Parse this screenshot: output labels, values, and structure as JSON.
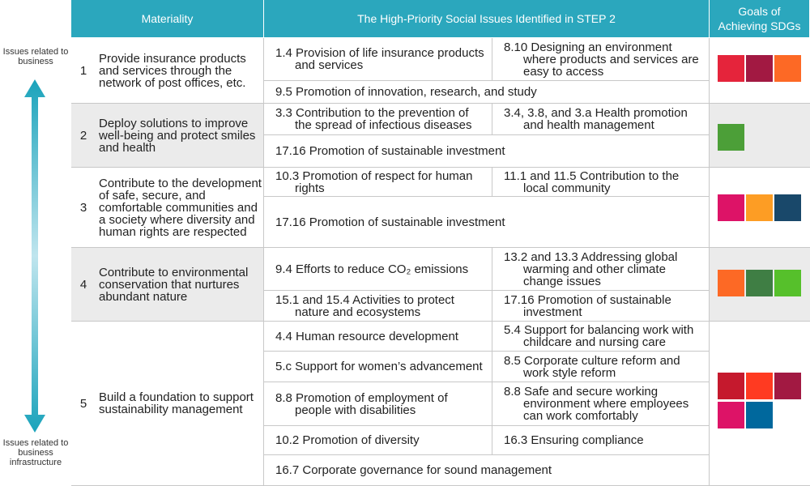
{
  "header": {
    "materiality": "Materiality",
    "issues": "The High-Priority Social Issues Identified in STEP 2",
    "goals": "Goals of Achieving SDGs"
  },
  "side": {
    "top": "Issues related to business",
    "bottom": "Issues related to business infrastructure"
  },
  "rows": [
    {
      "number": "1",
      "materiality": "Provide insurance products and services through the network of post offices, etc.",
      "issues": [
        [
          "1.4 Provision of life insurance products and services",
          "8.10 Designing an environment where products and services are easy to access"
        ],
        [
          "9.5 Promotion of innovation, research, and study"
        ]
      ]
    },
    {
      "number": "2",
      "materiality": "Deploy solutions to improve well-being and protect smiles and health",
      "issues": [
        [
          "3.3 Contribution to the prevention of the spread of infectious diseases",
          "3.4, 3.8, and 3.a Health promotion and health management"
        ],
        [
          "17.16 Promotion of sustainable investment"
        ]
      ]
    },
    {
      "number": "3",
      "materiality": "Contribute to the development of safe, secure, and comfortable communities and a society where diversity and human rights are respected",
      "issues": [
        [
          "10.3 Promotion of respect for human rights",
          "11.1 and 11.5 Contribution to the local community"
        ],
        [
          "17.16 Promotion of sustainable investment"
        ]
      ]
    },
    {
      "number": "4",
      "materiality": "Contribute to environmental conservation that nurtures abundant nature",
      "issues": [
        [
          "9.4 Efforts to reduce CO₂ emissions",
          "13.2 and 13.3 Addressing global warming and other climate change issues"
        ],
        [
          "15.1 and 15.4 Activities to protect nature and ecosystems",
          "17.16 Promotion of sustainable investment"
        ]
      ]
    },
    {
      "number": "5",
      "materiality": "Build a foundation to support sustainability management",
      "issues": [
        [
          "4.4 Human resource development",
          "5.4 Support for balancing work with childcare and nursing care"
        ],
        [
          "5.c Support for women’s advancement",
          "8.5 Corporate culture reform and work style reform"
        ],
        [
          "8.8 Promotion of employment of people with disabilities",
          "8.8 Safe and secure working environment where employees can work comfortably"
        ],
        [
          "10.2 Promotion of diversity",
          "16.3 Ensuring compliance"
        ],
        [
          "16.7 Corporate governance for sound management"
        ]
      ]
    }
  ]
}
